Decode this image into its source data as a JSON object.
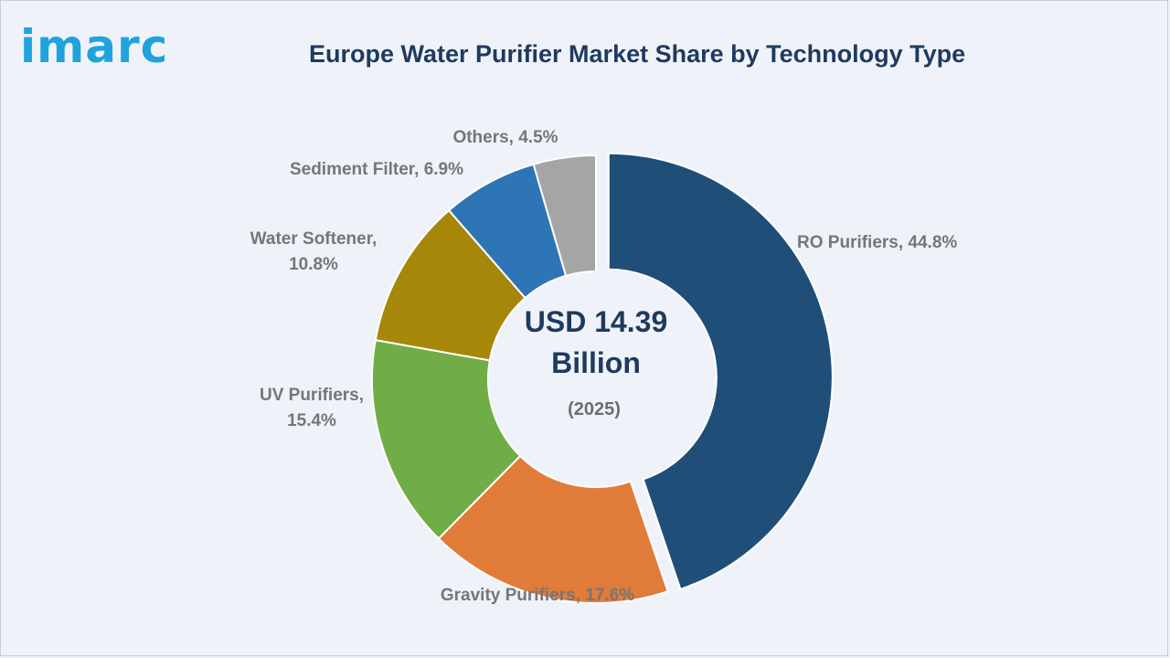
{
  "brand": {
    "logo_text": "imarc"
  },
  "chart_data": {
    "type": "pie",
    "title": "Europe Water Purifier Market Share by Technology Type",
    "center_value": "USD 14.39",
    "center_unit": "Billion",
    "center_year": "(2025)",
    "unit": "%",
    "categories": [
      "RO Purifiers",
      "Gravity Purifiers",
      "UV Purifiers",
      "Water Softener",
      "Sediment Filter",
      "Others"
    ],
    "values": [
      44.8,
      17.6,
      15.4,
      10.8,
      6.9,
      4.5
    ],
    "colors": [
      "#1f4e79",
      "#e07b39",
      "#70ad47",
      "#a6870a",
      "#2e75b6",
      "#a5a5a5"
    ],
    "labels": [
      [
        "RO Purifiers, 44.8%"
      ],
      [
        "Gravity Purifiers, 17.6%"
      ],
      [
        "UV Purifiers,",
        "15.4%"
      ],
      [
        "Water Softener,",
        "10.8%"
      ],
      [
        "Sediment Filter, 6.9%"
      ],
      [
        "Others, 4.5%"
      ]
    ],
    "exploded": [
      "RO Purifiers"
    ]
  }
}
